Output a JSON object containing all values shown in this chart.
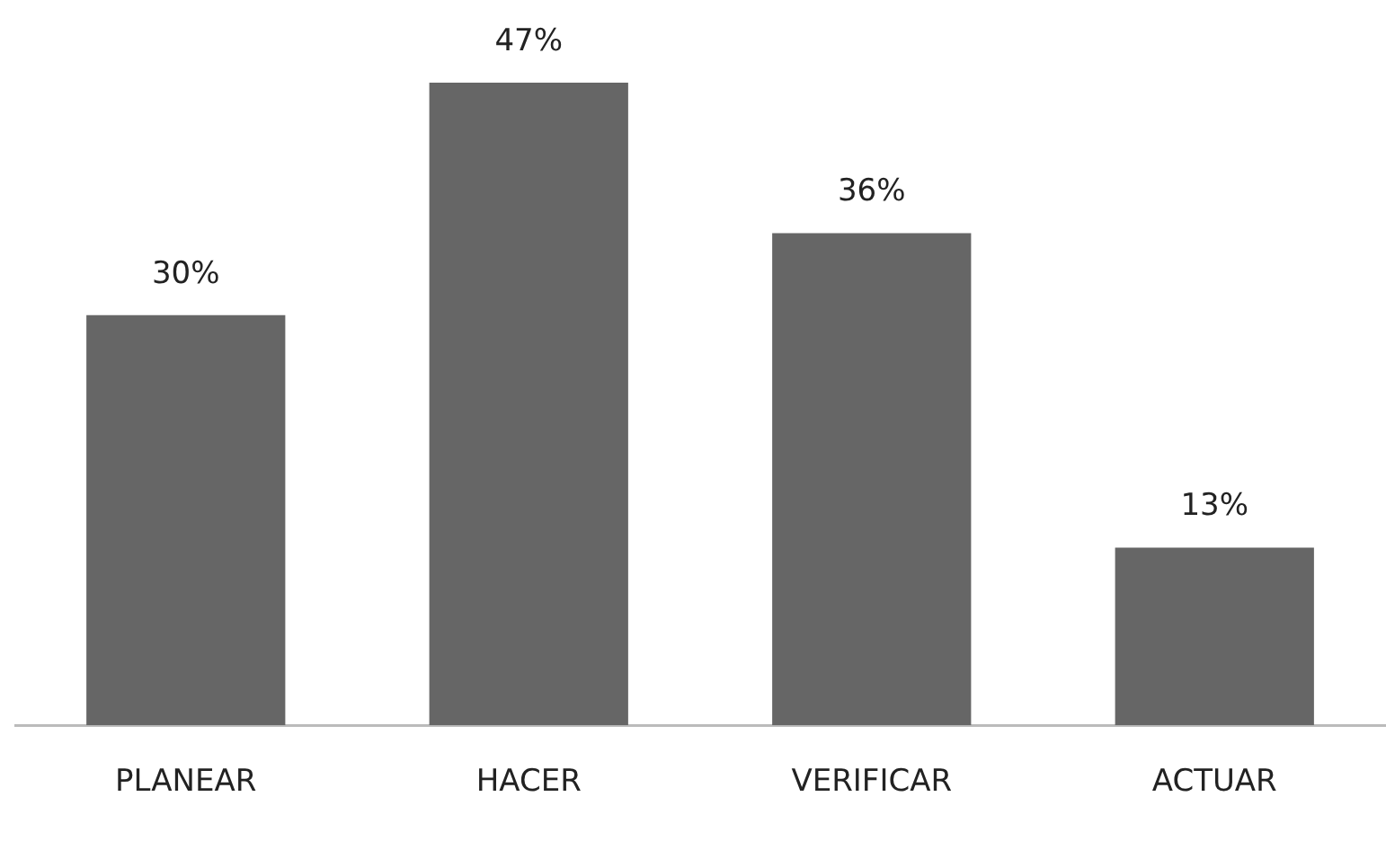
{
  "chart_data": {
    "type": "bar",
    "categories": [
      "PLANEAR",
      "HACER",
      "VERIFICAR",
      "ACTUAR"
    ],
    "values": [
      30,
      47,
      36,
      13
    ],
    "value_labels": [
      "30%",
      "47%",
      "36%",
      "13%"
    ],
    "color": "#666666",
    "grid": false,
    "legend": false
  }
}
